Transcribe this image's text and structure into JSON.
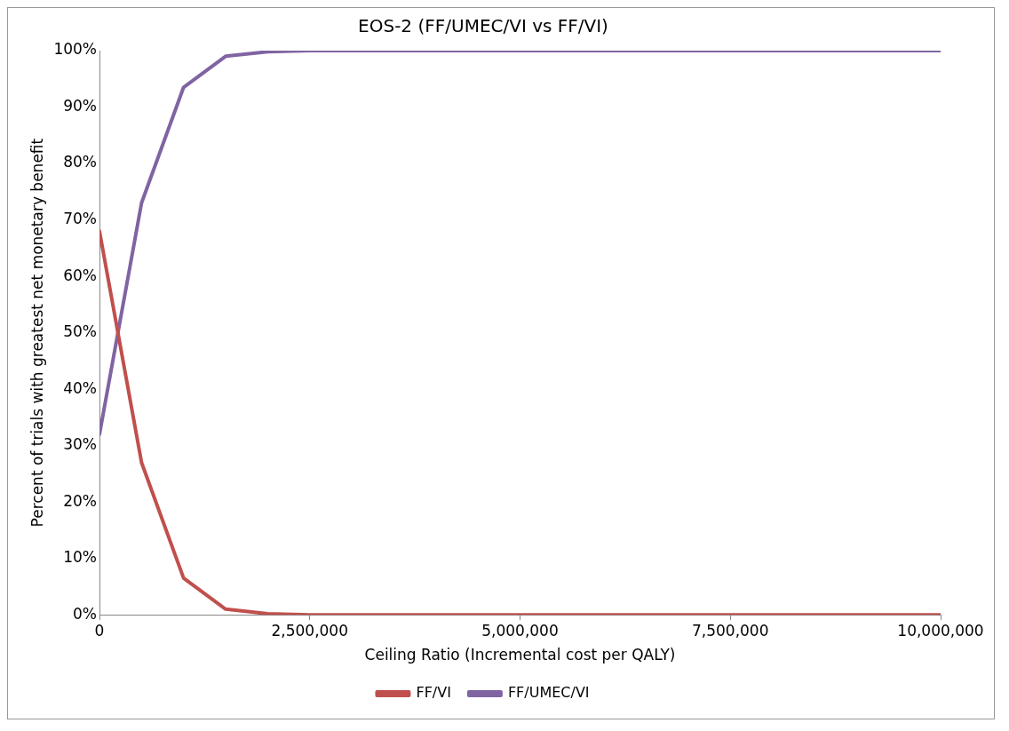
{
  "chart_data": {
    "type": "line",
    "title": "EOS-2 (FF/UMEC/VI vs FF/VI)",
    "xlabel": "Ceiling Ratio (Incremental cost per QALY)",
    "ylabel": "Percent of trials with greatest net monetary benefit",
    "x": [
      0,
      500000,
      1000000,
      1500000,
      2000000,
      2500000,
      3000000,
      3500000,
      4000000,
      4500000,
      5000000,
      5500000,
      6000000,
      6500000,
      7000000,
      7500000,
      8000000,
      8500000,
      9000000,
      9500000,
      10000000
    ],
    "series": [
      {
        "name": "FF/VI",
        "color": "#c0504d",
        "values": [
          68,
          27,
          6.5,
          1,
          0.2,
          0,
          0,
          0,
          0,
          0,
          0,
          0,
          0,
          0,
          0,
          0,
          0,
          0,
          0,
          0,
          0
        ]
      },
      {
        "name": "FF/UMEC/VI",
        "color": "#8064a2",
        "values": [
          32,
          73,
          93.5,
          99,
          99.8,
          100,
          100,
          100,
          100,
          100,
          100,
          100,
          100,
          100,
          100,
          100,
          100,
          100,
          100,
          100,
          100
        ]
      }
    ],
    "xlim": [
      0,
      10000000
    ],
    "xticks": [
      {
        "value": 0,
        "label": "0"
      },
      {
        "value": 2500000,
        "label": "2,500,000"
      },
      {
        "value": 5000000,
        "label": "5,000,000"
      },
      {
        "value": 7500000,
        "label": "7,500,000"
      },
      {
        "value": 10000000,
        "label": "10,000,000"
      }
    ],
    "ylim": [
      0,
      100
    ],
    "yticks": [
      {
        "value": 0,
        "label": "0%"
      },
      {
        "value": 10,
        "label": "10%"
      },
      {
        "value": 20,
        "label": "20%"
      },
      {
        "value": 30,
        "label": "30%"
      },
      {
        "value": 40,
        "label": "40%"
      },
      {
        "value": 50,
        "label": "50%"
      },
      {
        "value": 60,
        "label": "60%"
      },
      {
        "value": 70,
        "label": "70%"
      },
      {
        "value": 80,
        "label": "80%"
      },
      {
        "value": 90,
        "label": "90%"
      },
      {
        "value": 100,
        "label": "100%"
      }
    ],
    "grid": false,
    "legend": "bottom",
    "marker": "none",
    "line_style": "solid"
  }
}
